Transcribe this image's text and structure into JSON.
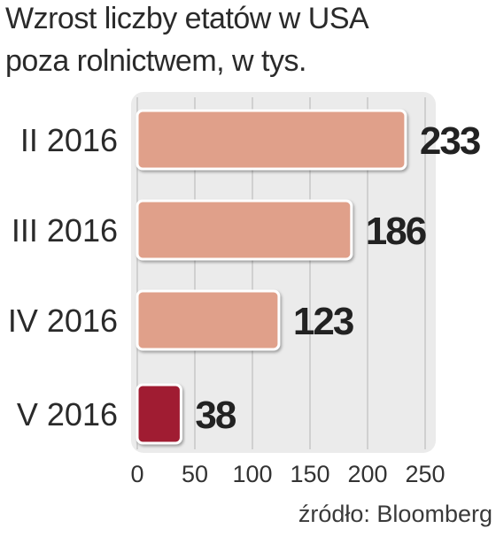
{
  "chart_data": {
    "type": "bar",
    "orientation": "horizontal",
    "title": "Wzrost liczby etatów w USA",
    "subtitle": "poza rolnictwem, w tys.",
    "categories": [
      "II 2016",
      "III 2016",
      "IV 2016",
      "V 2016"
    ],
    "values": [
      233,
      186,
      123,
      38
    ],
    "value_labels": [
      "233",
      "186",
      "123",
      "38"
    ],
    "x_ticks": [
      "0",
      "50",
      "100",
      "150",
      "200",
      "250"
    ],
    "xlim": [
      0,
      250
    ],
    "grid": true,
    "source": "źródło: Bloomberg",
    "colors": {
      "bar": "#e0a08a",
      "bar_highlight": "#a01c30",
      "bar_outline": "#ffffff",
      "plot_background": "#ebebeb",
      "grid": "#c8c8c8",
      "value_label": "#222222",
      "category_label": "#2a2a2a"
    },
    "highlight_index": 3
  }
}
